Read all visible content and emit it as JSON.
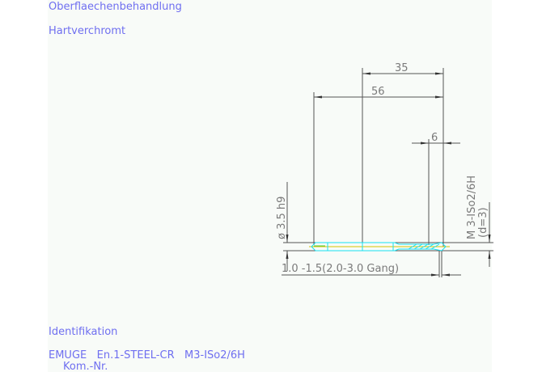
{
  "header": {
    "surface_label": "Oberflaechenbehandlung",
    "surface_value": "Hartverchromt"
  },
  "drawing": {
    "dim_thread_length": "35",
    "dim_total_length": "56",
    "dim_chamfer": "6",
    "dim_shank_diameter": "ø 3.5 h9",
    "thread_spec": "M 3-ISo2/6H",
    "thread_diameter": "(d=3)",
    "chamfer_note": "1.0 -1.5(2.0-3.0 Gang)",
    "colors": {
      "text": "#6f6ff0",
      "dimension": "#555555",
      "tool_outline": "#19e0f0",
      "center_line": "#d4c400"
    }
  },
  "footer": {
    "ident_label": "Identifikation",
    "ident_value": "EMUGE   En.1-STEEL-CR   M3-ISo2/6H",
    "order_label": "Kom.-Nr."
  }
}
